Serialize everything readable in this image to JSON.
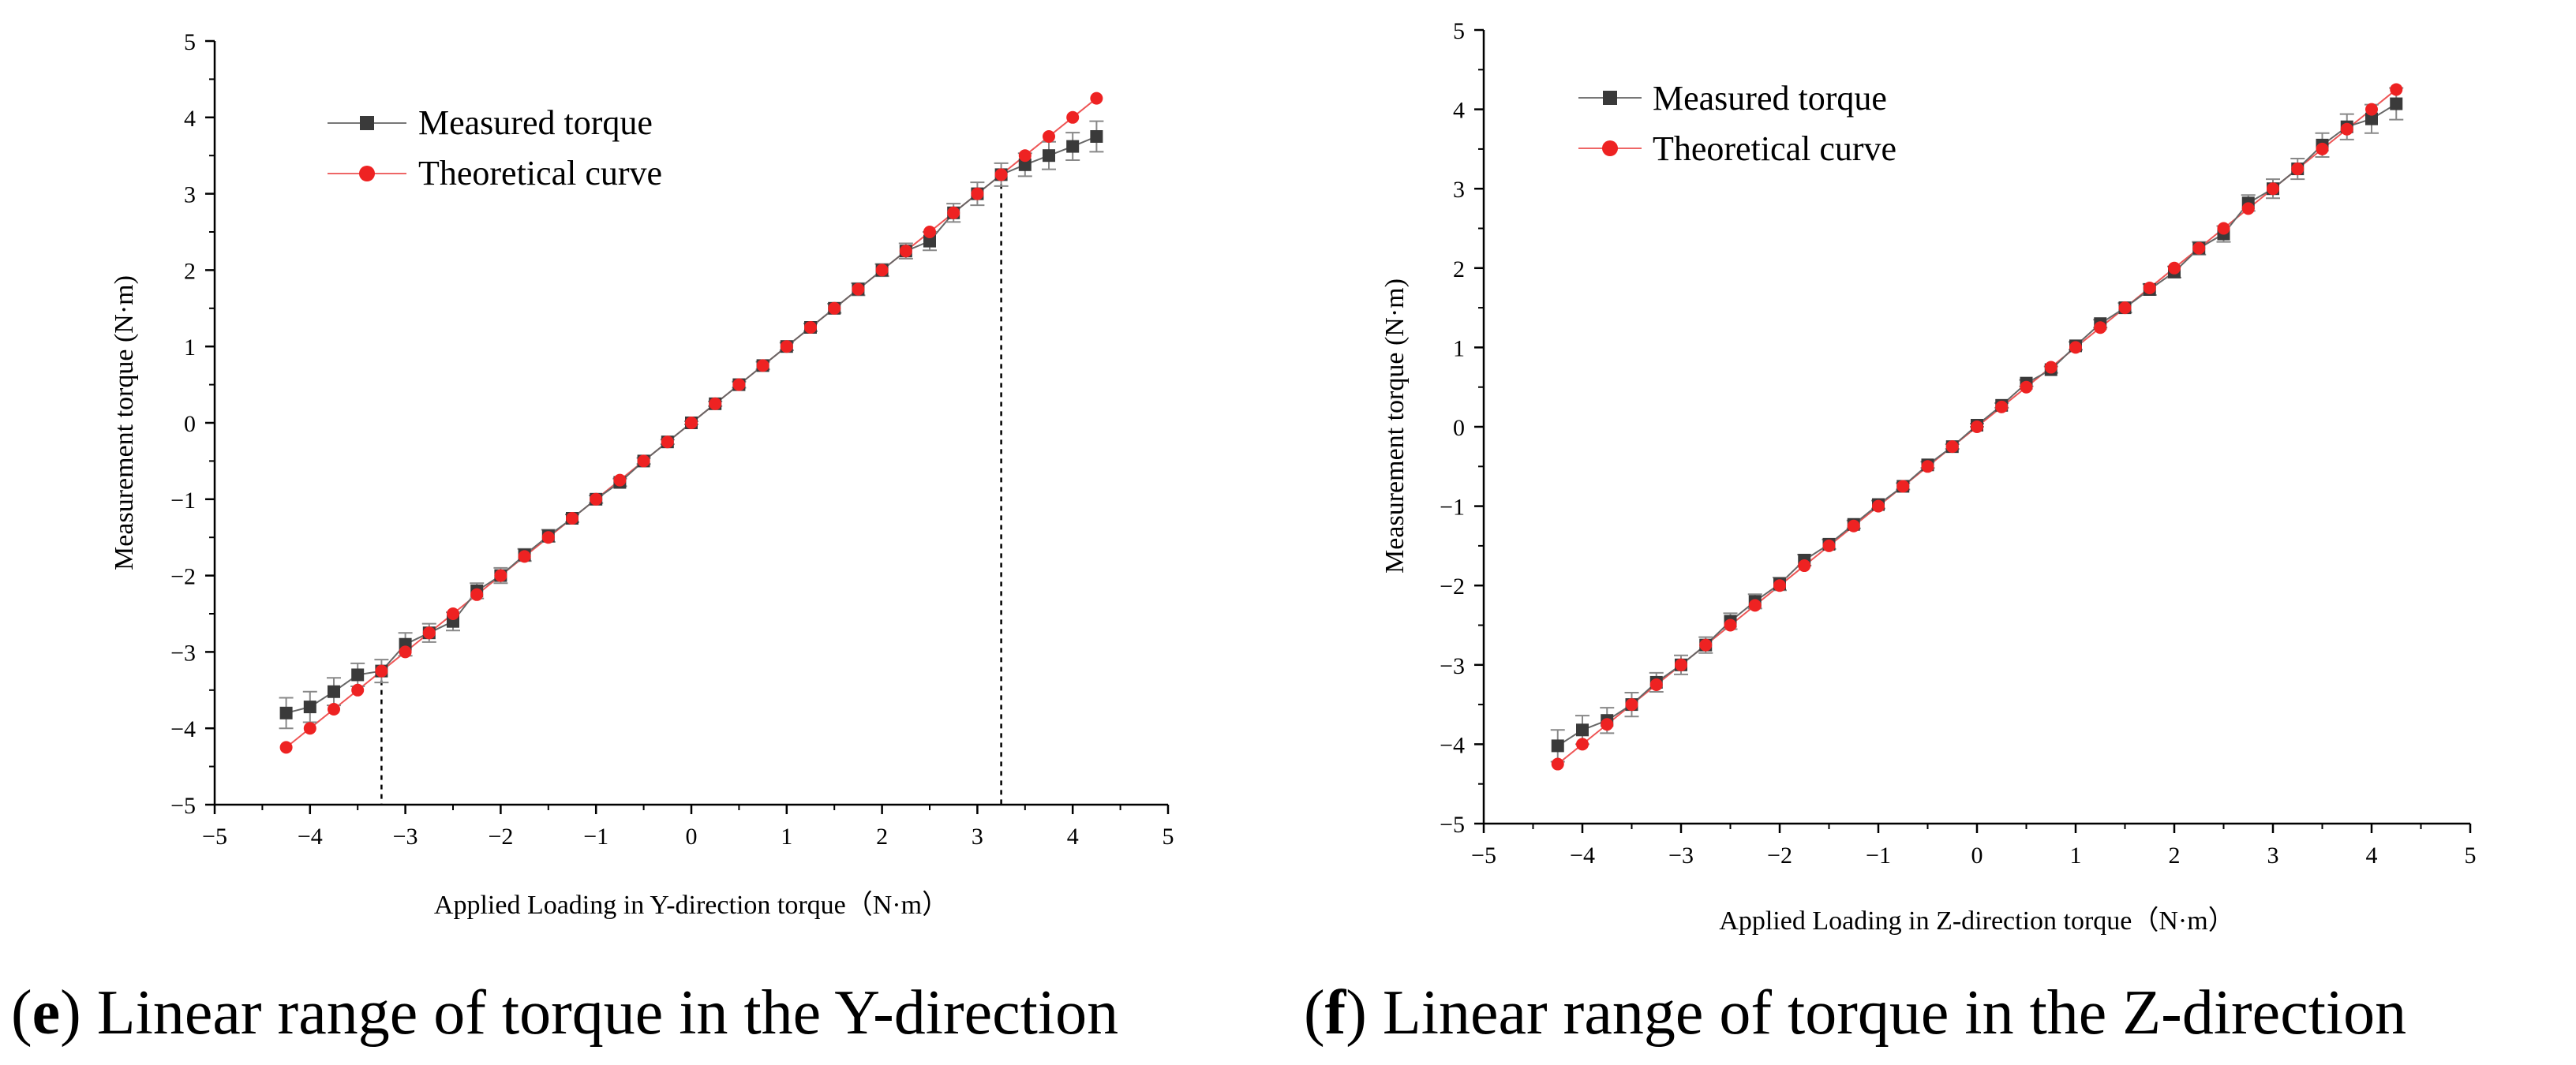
{
  "chart_data": [
    {
      "type": "line",
      "id": "e",
      "xlabel": "Applied Loading in Y-direction torque（N·m）",
      "ylabel": "Measurement torque (N·m)",
      "xlim": [
        -5,
        5
      ],
      "ylim": [
        -5,
        5
      ],
      "xticks": [
        "−5",
        "−4",
        "−3",
        "−2",
        "−1",
        "0",
        "1",
        "2",
        "3",
        "4",
        "5"
      ],
      "yticks": [
        "−5",
        "−4",
        "−3",
        "−2",
        "−1",
        "0",
        "1",
        "2",
        "3",
        "4",
        "5"
      ],
      "legend": [
        "Measured torque",
        "Theoretical curve"
      ],
      "linear_range_markers": [
        -3.25,
        3.25
      ],
      "x": [
        -4.25,
        -4,
        -3.75,
        -3.5,
        -3.25,
        -3,
        -2.75,
        -2.5,
        -2.25,
        -2,
        -1.75,
        -1.5,
        -1.25,
        -1,
        -0.75,
        -0.5,
        -0.25,
        0,
        0.25,
        0.5,
        0.75,
        1,
        1.25,
        1.5,
        1.75,
        2,
        2.25,
        2.5,
        2.75,
        3,
        3.25,
        3.5,
        3.75,
        4,
        4.25
      ],
      "series": [
        {
          "name": "Measured torque",
          "color": "#3a3a3a",
          "marker": "square",
          "values": [
            -3.8,
            -3.72,
            -3.52,
            -3.3,
            -3.25,
            -2.9,
            -2.75,
            -2.6,
            -2.2,
            -2.0,
            -1.73,
            -1.48,
            -1.25,
            -1.0,
            -0.78,
            -0.5,
            -0.25,
            0,
            0.25,
            0.5,
            0.75,
            1.0,
            1.25,
            1.5,
            1.75,
            2.0,
            2.25,
            2.38,
            2.75,
            3.0,
            3.25,
            3.38,
            3.5,
            3.62,
            3.75
          ],
          "errors": [
            0.2,
            0.2,
            0.18,
            0.15,
            0.15,
            0.15,
            0.12,
            0.12,
            0.1,
            0.1,
            0.08,
            0.08,
            0.05,
            0.05,
            0.05,
            0.04,
            0.03,
            0.02,
            0.03,
            0.04,
            0.05,
            0.05,
            0.05,
            0.06,
            0.08,
            0.08,
            0.1,
            0.12,
            0.12,
            0.15,
            0.15,
            0.15,
            0.18,
            0.18,
            0.2
          ]
        },
        {
          "name": "Theoretical curve",
          "color": "#ee2222",
          "marker": "circle",
          "values": [
            -4.25,
            -4,
            -3.75,
            -3.5,
            -3.25,
            -3,
            -2.75,
            -2.5,
            -2.25,
            -2,
            -1.75,
            -1.5,
            -1.25,
            -1,
            -0.75,
            -0.5,
            -0.25,
            0,
            0.25,
            0.5,
            0.75,
            1,
            1.25,
            1.5,
            1.75,
            2,
            2.25,
            2.5,
            2.75,
            3,
            3.25,
            3.5,
            3.75,
            4,
            4.25
          ]
        }
      ],
      "caption_letter": "e",
      "caption_text": ") Linear range of torque in the Y-direction"
    },
    {
      "type": "line",
      "id": "f",
      "xlabel": "Applied Loading in Z-direction torque（N·m）",
      "ylabel": "Measurement torque (N·m)",
      "xlim": [
        -5,
        5
      ],
      "ylim": [
        -5,
        5
      ],
      "xticks": [
        "−5",
        "−4",
        "−3",
        "−2",
        "−1",
        "0",
        "1",
        "2",
        "3",
        "4",
        "5"
      ],
      "yticks": [
        "−5",
        "−4",
        "−3",
        "−2",
        "−1",
        "0",
        "1",
        "2",
        "3",
        "4",
        "5"
      ],
      "legend": [
        "Measured torque",
        "Theoretical curve"
      ],
      "linear_range_markers": [],
      "x": [
        -4.25,
        -4,
        -3.75,
        -3.5,
        -3.25,
        -3,
        -2.75,
        -2.5,
        -2.25,
        -2,
        -1.75,
        -1.5,
        -1.25,
        -1,
        -0.75,
        -0.5,
        -0.25,
        0,
        0.25,
        0.5,
        0.75,
        1,
        1.25,
        1.5,
        1.75,
        2,
        2.25,
        2.5,
        2.75,
        3,
        3.25,
        3.5,
        3.75,
        4,
        4.25
      ],
      "series": [
        {
          "name": "Measured torque",
          "color": "#3a3a3a",
          "marker": "square",
          "values": [
            -4.02,
            -3.82,
            -3.7,
            -3.5,
            -3.22,
            -3.0,
            -2.75,
            -2.45,
            -2.2,
            -1.98,
            -1.68,
            -1.48,
            -1.23,
            -0.98,
            -0.75,
            -0.48,
            -0.25,
            0.02,
            0.27,
            0.55,
            0.72,
            1.02,
            1.3,
            1.5,
            1.73,
            1.95,
            2.25,
            2.43,
            2.82,
            3.0,
            3.25,
            3.55,
            3.78,
            3.88,
            4.07
          ],
          "errors": [
            0.2,
            0.18,
            0.16,
            0.15,
            0.12,
            0.12,
            0.1,
            0.1,
            0.09,
            0.08,
            0.07,
            0.06,
            0.05,
            0.05,
            0.04,
            0.04,
            0.03,
            0.02,
            0.03,
            0.04,
            0.04,
            0.05,
            0.05,
            0.06,
            0.07,
            0.07,
            0.08,
            0.1,
            0.1,
            0.12,
            0.13,
            0.15,
            0.16,
            0.18,
            0.2
          ]
        },
        {
          "name": "Theoretical curve",
          "color": "#ee2222",
          "marker": "circle",
          "values": [
            -4.25,
            -4,
            -3.75,
            -3.5,
            -3.25,
            -3,
            -2.75,
            -2.5,
            -2.25,
            -2,
            -1.75,
            -1.5,
            -1.25,
            -1,
            -0.75,
            -0.5,
            -0.25,
            0,
            0.25,
            0.5,
            0.75,
            1,
            1.25,
            1.5,
            1.75,
            2,
            2.25,
            2.5,
            2.75,
            3,
            3.25,
            3.5,
            3.75,
            4,
            4.25
          ]
        }
      ],
      "caption_letter": "f",
      "caption_text": ") Linear range of torque in the Z-direction"
    }
  ]
}
